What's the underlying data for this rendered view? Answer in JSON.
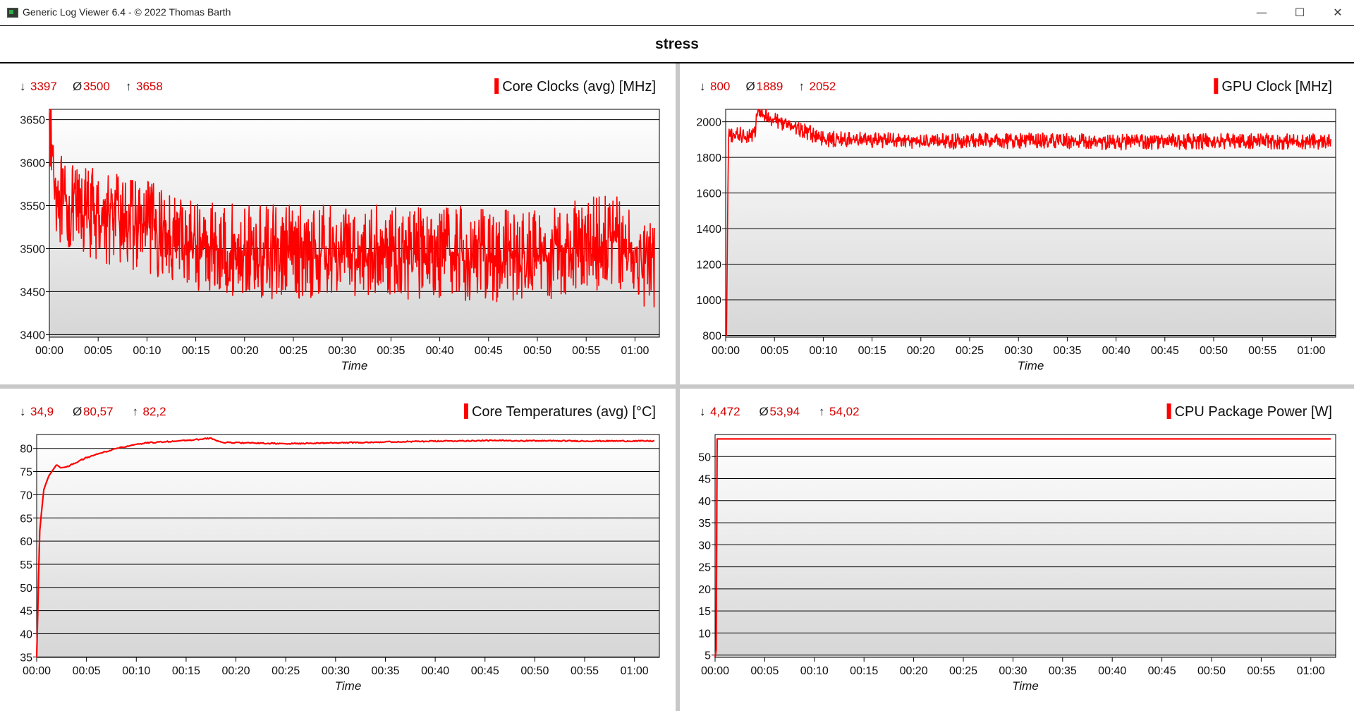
{
  "window": {
    "title": "Generic Log Viewer 6.4 - © 2022 Thomas Barth",
    "minimize": "—",
    "maximize": "☐",
    "close": "✕"
  },
  "header": {
    "title": "stress"
  },
  "accent": "#ff0000",
  "chart_data": [
    {
      "type": "line",
      "title": "Core Clocks (avg) [MHz]",
      "xlabel": "Time",
      "ylabel": "",
      "stats": {
        "min": "3397",
        "avg": "3500",
        "max": "3658"
      },
      "x_ticks": [
        "00:00",
        "00:05",
        "00:10",
        "00:15",
        "00:20",
        "00:25",
        "00:30",
        "00:35",
        "00:40",
        "00:45",
        "00:50",
        "00:55",
        "01:00"
      ],
      "y_ticks": [
        3400,
        3450,
        3500,
        3550,
        3600,
        3650
      ],
      "ylim": [
        3397,
        3662
      ],
      "xlim_minutes": [
        0,
        62.5
      ],
      "grid": true,
      "series": [
        {
          "pattern": "noisy",
          "x_min": [
            0,
            0.5,
            1.5,
            5,
            10,
            15,
            20,
            30,
            40,
            50,
            55,
            58,
            62
          ],
          "y": [
            3658,
            3580,
            3545,
            3540,
            3525,
            3505,
            3495,
            3498,
            3495,
            3492,
            3505,
            3510,
            3480
          ],
          "noise": 55
        }
      ]
    },
    {
      "type": "line",
      "title": "GPU Clock [MHz]",
      "xlabel": "Time",
      "ylabel": "",
      "stats": {
        "min": "800",
        "avg": "1889",
        "max": "2052"
      },
      "x_ticks": [
        "00:00",
        "00:05",
        "00:10",
        "00:15",
        "00:20",
        "00:25",
        "00:30",
        "00:35",
        "00:40",
        "00:45",
        "00:50",
        "00:55",
        "01:00"
      ],
      "y_ticks": [
        800,
        1000,
        1200,
        1400,
        1600,
        1800,
        2000
      ],
      "ylim": [
        790,
        2070
      ],
      "xlim_minutes": [
        0,
        62.5
      ],
      "grid": true,
      "series": [
        {
          "pattern": "noisy",
          "x_min": [
            0,
            0.1,
            0.2,
            0.3,
            3,
            3.2,
            10,
            20,
            30,
            40,
            50,
            62
          ],
          "y": [
            800,
            800,
            1500,
            1920,
            1930,
            2052,
            1905,
            1890,
            1895,
            1885,
            1890,
            1890
          ],
          "noise": 45
        }
      ]
    },
    {
      "type": "line",
      "title": "Core Temperatures (avg) [°C]",
      "xlabel": "Time",
      "ylabel": "",
      "stats": {
        "min": "34,9",
        "avg": "80,57",
        "max": "82,2"
      },
      "x_ticks": [
        "00:00",
        "00:05",
        "00:10",
        "00:15",
        "00:20",
        "00:25",
        "00:30",
        "00:35",
        "00:40",
        "00:45",
        "00:50",
        "00:55",
        "01:00"
      ],
      "y_ticks": [
        35,
        40,
        45,
        50,
        55,
        60,
        65,
        70,
        75,
        80
      ],
      "ylim": [
        34.9,
        83
      ],
      "xlim_minutes": [
        0,
        62.5
      ],
      "grid": true,
      "series": [
        {
          "pattern": "smooth",
          "x_min": [
            0,
            0.3,
            0.7,
            1.2,
            2,
            2.4,
            3,
            5,
            8,
            11,
            15,
            17.5,
            18.5,
            25,
            35,
            45,
            55,
            62
          ],
          "y": [
            34.9,
            62,
            71,
            74,
            76.5,
            75.8,
            76,
            78,
            80,
            81.2,
            81.7,
            82.2,
            81.3,
            81,
            81.4,
            81.7,
            81.6,
            81.6
          ]
        }
      ]
    },
    {
      "type": "line",
      "title": "CPU Package Power [W]",
      "xlabel": "Time",
      "ylabel": "",
      "stats": {
        "min": "4,472",
        "avg": "53,94",
        "max": "54,02"
      },
      "x_ticks": [
        "00:00",
        "00:05",
        "00:10",
        "00:15",
        "00:20",
        "00:25",
        "00:30",
        "00:35",
        "00:40",
        "00:45",
        "00:50",
        "00:55",
        "01:00"
      ],
      "y_ticks": [
        5,
        10,
        15,
        20,
        25,
        30,
        35,
        40,
        45,
        50
      ],
      "ylim": [
        4.472,
        55
      ],
      "xlim_minutes": [
        0,
        62.5
      ],
      "grid": true,
      "series": [
        {
          "pattern": "smooth",
          "x_min": [
            0,
            0.1,
            0.2,
            62
          ],
          "y": [
            4.5,
            4.5,
            54,
            54
          ]
        }
      ]
    }
  ]
}
